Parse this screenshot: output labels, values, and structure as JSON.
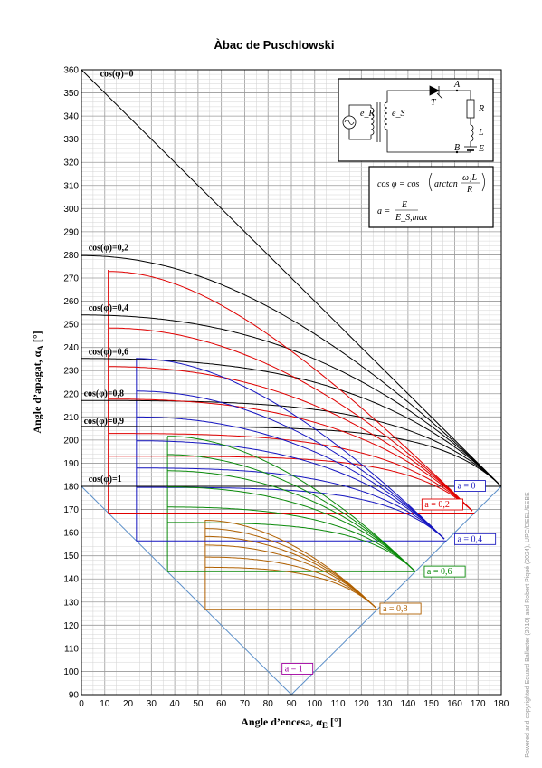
{
  "chart_data": {
    "type": "line",
    "title": "Àbac de Puschlowski",
    "xlabel": "Angle d’encesa, α",
    "xlabel_sub": "E",
    "xlabel_unit": " [°]",
    "ylabel": "Angle d’apagat, α",
    "ylabel_sub": "A",
    "ylabel_unit": " [°]",
    "xlim": [
      0,
      180
    ],
    "ylim": [
      90,
      360
    ],
    "xticks": [
      0,
      10,
      20,
      30,
      40,
      50,
      60,
      70,
      80,
      90,
      100,
      110,
      120,
      130,
      140,
      150,
      160,
      170,
      180
    ],
    "yticks": [
      90,
      100,
      110,
      120,
      130,
      140,
      150,
      160,
      170,
      180,
      190,
      200,
      210,
      220,
      230,
      240,
      250,
      260,
      270,
      280,
      290,
      300,
      310,
      320,
      330,
      340,
      350,
      360
    ],
    "grid": true,
    "cos_labels": [
      {
        "text": "cos(φ)=0",
        "x": 8,
        "y": 357
      },
      {
        "text": "cos(φ)=0,2",
        "x": 3,
        "y": 282
      },
      {
        "text": "cos(φ)=0,4",
        "x": 3,
        "y": 256
      },
      {
        "text": "cos(φ)=0,6",
        "x": 3,
        "y": 237
      },
      {
        "text": "cos(φ)=0,8",
        "x": 1,
        "y": 219
      },
      {
        "text": "cos(φ)=0,9",
        "x": 1,
        "y": 207
      },
      {
        "text": "cos(φ)=1",
        "x": 3,
        "y": 182
      }
    ],
    "a_labels": [
      {
        "text": "a = 0",
        "x": 160,
        "y": 179,
        "color": "#2020c0"
      },
      {
        "text": "a = 0,2",
        "x": 146,
        "y": 171,
        "color": "#e00000"
      },
      {
        "text": "a = 0,4",
        "x": 160,
        "y": 156,
        "color": "#2020c0"
      },
      {
        "text": "a = 0,6",
        "x": 147,
        "y": 142,
        "color": "#0a8a0a"
      },
      {
        "text": "a = 0,8",
        "x": 128,
        "y": 126,
        "color": "#b06000"
      },
      {
        "text": "a = 1",
        "x": 86,
        "y": 100,
        "color": "#a000a0"
      }
    ],
    "families": [
      {
        "name": "a = 0",
        "a": 0,
        "color": "#000000"
      },
      {
        "name": "a = 0,2",
        "a": 0.2,
        "color": "#e00000"
      },
      {
        "name": "a = 0,4",
        "a": 0.4,
        "color": "#1515c0"
      },
      {
        "name": "a = 0,6",
        "a": 0.6,
        "color": "#0a8a0a"
      },
      {
        "name": "a = 0,8",
        "a": 0.8,
        "color": "#b06000"
      }
    ],
    "cos_values": [
      0,
      0.2,
      0.4,
      0.6,
      0.8,
      0.9,
      1
    ],
    "vertical_guides": [
      {
        "color": "#e00000",
        "x": 11.5,
        "y0": 168.5,
        "y1": 273.5
      },
      {
        "color": "#1515c0",
        "x": 23.6,
        "y0": 156.4,
        "y1": 235.5
      },
      {
        "color": "#0a8a0a",
        "x": 36.9,
        "y0": 143.1,
        "y1": 201.5
      },
      {
        "color": "#b06000",
        "x": 53.1,
        "y0": 126.9,
        "y1": 165.5
      }
    ],
    "circuit": {
      "labels": [
        "e_R",
        "e_S",
        "T",
        "A",
        "R",
        "L",
        "B",
        "E"
      ]
    },
    "formula": {
      "line1_left": "cos φ = cos",
      "line1_mid": "arctan",
      "line1_num": "ω₁L",
      "line1_den": "R",
      "line2_left": "a =",
      "line2_num": "E",
      "line2_den": "E_S,max"
    },
    "side_note": "Powered and copyrighted Eduard Ballester (2010) and Robert Piqué (2024), UPC/DEEL/EEBE"
  }
}
